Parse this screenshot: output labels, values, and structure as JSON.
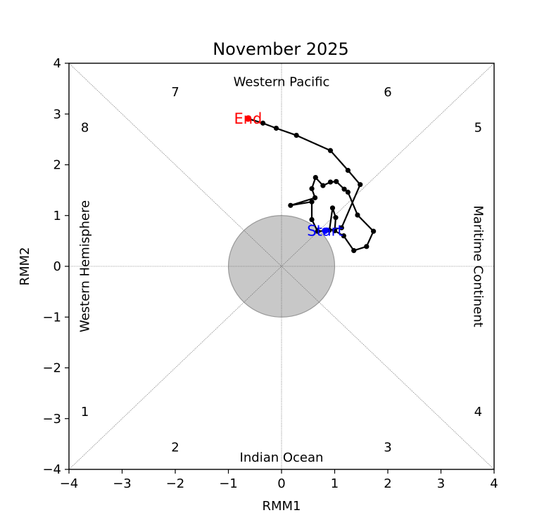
{
  "chart_data": {
    "type": "line",
    "title": "November 2025",
    "xlabel": "RMM1",
    "ylabel": "RMM2",
    "xlim": [
      -4,
      4
    ],
    "ylim": [
      -4,
      4
    ],
    "ticks": [
      "−4",
      "−3",
      "−2",
      "−1",
      "0",
      "1",
      "2",
      "3",
      "4"
    ],
    "tick_values": [
      -4,
      -3,
      -2,
      -1,
      0,
      1,
      2,
      3,
      4
    ],
    "inner_circle_radius": 1,
    "region_labels": {
      "top": "Western Pacific",
      "bottom": "Indian Ocean",
      "left": "Western Hemisphere",
      "right": "Maritime Continent"
    },
    "phase_labels": [
      {
        "text": "1",
        "x": -3.7,
        "y": -2.95
      },
      {
        "text": "2",
        "x": -2.0,
        "y": -3.65
      },
      {
        "text": "3",
        "x": 2.0,
        "y": -3.65
      },
      {
        "text": "4",
        "x": 3.7,
        "y": -2.95
      },
      {
        "text": "5",
        "x": 3.7,
        "y": 2.65
      },
      {
        "text": "6",
        "x": 2.0,
        "y": 3.35
      },
      {
        "text": "7",
        "x": -2.0,
        "y": 3.35
      },
      {
        "text": "8",
        "x": -3.7,
        "y": 2.65
      }
    ],
    "start_label": "Start",
    "end_label": "End",
    "colors": {
      "line": "#000000",
      "start": "#0000ff",
      "end": "#ff0000",
      "circle_fill": "#c8c8c8",
      "circle_edge": "#999999",
      "guide": "#555555"
    },
    "series": [
      {
        "x": [
          0.82,
          0.68,
          0.57,
          0.57,
          0.17,
          0.63,
          0.57,
          0.64,
          0.78,
          0.92,
          1.03,
          1.18,
          1.25,
          1.43,
          1.73,
          1.6,
          1.36,
          1.17,
          1.0,
          1.02,
          0.96,
          0.9,
          1.13,
          1.48,
          1.25,
          0.92,
          0.28,
          -0.1,
          -0.35,
          -0.63
        ],
        "y": [
          0.7,
          0.69,
          0.92,
          1.27,
          1.2,
          1.35,
          1.53,
          1.75,
          1.59,
          1.66,
          1.67,
          1.52,
          1.46,
          1.01,
          0.69,
          0.39,
          0.31,
          0.6,
          0.7,
          0.96,
          1.15,
          0.71,
          0.76,
          1.61,
          1.89,
          2.28,
          2.58,
          2.72,
          2.82,
          2.91
        ]
      }
    ]
  }
}
